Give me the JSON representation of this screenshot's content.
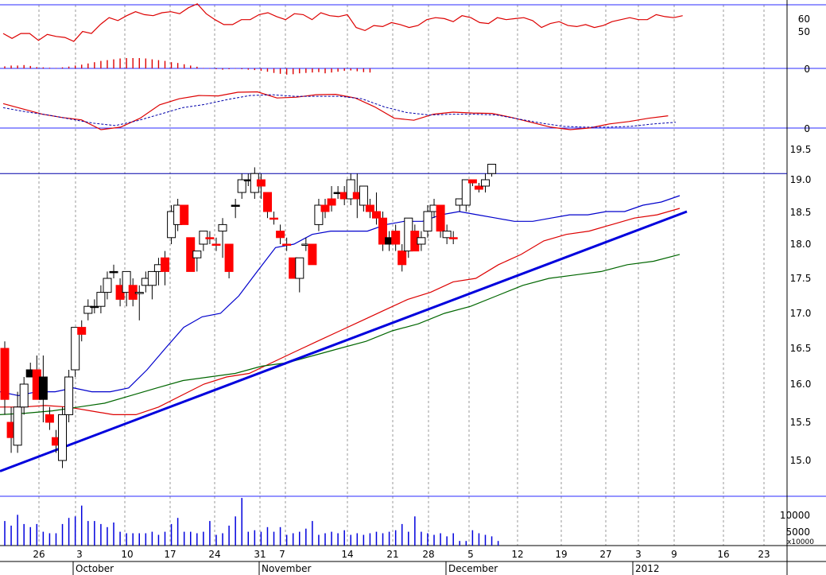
{
  "colors": {
    "up_candle": "#ffffff",
    "down_candle": "#ff0000",
    "neutral_candle": "#000000",
    "ma_fast": "#0000cc",
    "ma_mid": "#dd0000",
    "ma_slow": "#006600",
    "trendline": "#0000dd",
    "resistance": "#0000aa",
    "grid": "#999999",
    "rsi_line": "#dd0000",
    "macd_line": "#dd0000",
    "macd_signal": "#0000aa",
    "histogram": "#dd0000",
    "volume": "#0000dd"
  },
  "chart_data": [
    {
      "type": "line",
      "panel": "rsi",
      "yticks": [
        "60",
        "50"
      ],
      "ylim": [
        30,
        75
      ],
      "series": [
        {
          "values": [
            46,
            41,
            46,
            46,
            39,
            45,
            43,
            42,
            38,
            48,
            46,
            55,
            62,
            59,
            64,
            68,
            65,
            64,
            67,
            68,
            66,
            72,
            76,
            66,
            60,
            55,
            55,
            60,
            60,
            65,
            67,
            63,
            60,
            66,
            65,
            60,
            67,
            64,
            63,
            65,
            52,
            49,
            54,
            53,
            57,
            55,
            52,
            54,
            60,
            62,
            61,
            58,
            64,
            62,
            57,
            56,
            62,
            60,
            61,
            62,
            59,
            52,
            56,
            58,
            54,
            53,
            55,
            52,
            54,
            58,
            60,
            62,
            60,
            60,
            65,
            63,
            62,
            64
          ]
        }
      ]
    },
    {
      "type": "bar",
      "panel": "macd_histogram",
      "yticks": [
        "0"
      ],
      "ylim": [
        -1,
        1
      ],
      "values": [
        0.1,
        0.14,
        0.14,
        0.16,
        0.12,
        0.06,
        0.05,
        0.03,
        0.02,
        0.05,
        0.09,
        0.14,
        0.18,
        0.24,
        0.3,
        0.36,
        0.4,
        0.44,
        0.48,
        0.5,
        0.5,
        0.5,
        0.48,
        0.44,
        0.4,
        0.36,
        0.3,
        0.26,
        0.2,
        0.14,
        0.08,
        0.02,
        -0.02,
        -0.04,
        -0.06,
        -0.04,
        -0.02,
        -0.04,
        -0.06,
        -0.08,
        -0.12,
        -0.16,
        -0.22,
        -0.26,
        -0.3,
        -0.28,
        -0.24,
        -0.22,
        -0.2,
        -0.18,
        -0.24,
        -0.2,
        -0.16,
        -0.12,
        -0.1,
        -0.14,
        -0.18,
        -0.2
      ]
    },
    {
      "type": "line",
      "panel": "macd",
      "yticks": [
        "0"
      ],
      "ylim": [
        -1,
        1
      ],
      "series": [
        {
          "values": [
            0.68,
            0.55,
            0.42,
            0.34,
            0.28,
            0.04,
            0.1,
            0.32,
            0.65,
            0.8,
            0.88,
            0.87,
            0.96,
            0.97,
            0.82,
            0.84,
            0.9,
            0.91,
            0.82,
            0.6,
            0.32,
            0.27,
            0.42,
            0.47,
            0.45,
            0.44,
            0.34,
            0.22,
            0.1,
            0.04,
            0.08,
            0.18,
            0.24,
            0.32,
            0.38
          ]
        },
        {
          "values": [
            0.58,
            0.48,
            0.4,
            0.3,
            0.2,
            0.14,
            0.26,
            0.42,
            0.58,
            0.66,
            0.78,
            0.88,
            0.9,
            0.86,
            0.86,
            0.86,
            0.8,
            0.6,
            0.46,
            0.4,
            0.42,
            0.42,
            0.4,
            0.3,
            0.2,
            0.12,
            0.1,
            0.1,
            0.12,
            0.18,
            0.22
          ]
        }
      ]
    },
    {
      "type": "candlestick",
      "panel": "price",
      "yticks": [
        "19.5",
        "19.0",
        "18.5",
        "18.0",
        "17.5",
        "17.0",
        "16.5",
        "16.0",
        "15.5",
        "15.0"
      ],
      "ylim": [
        14.5,
        19.8
      ],
      "resistance": 19.1,
      "trendline": {
        "from": 14.86,
        "to": 18.5
      },
      "candles": [
        {
          "o": 16.5,
          "h": 16.6,
          "l": 15.6,
          "c": 15.8,
          "d": -1
        },
        {
          "o": 15.5,
          "h": 15.7,
          "l": 15.1,
          "c": 15.3,
          "d": -1
        },
        {
          "o": 15.2,
          "h": 15.9,
          "l": 15.1,
          "c": 15.7,
          "d": 1
        },
        {
          "o": 15.7,
          "h": 16.1,
          "l": 15.6,
          "c": 16.0,
          "d": 1
        },
        {
          "o": 16.2,
          "h": 16.3,
          "l": 16.1,
          "c": 16.1,
          "d": 0
        },
        {
          "o": 16.2,
          "h": 16.4,
          "l": 15.8,
          "c": 15.8,
          "d": -1
        },
        {
          "o": 16.1,
          "h": 16.4,
          "l": 15.5,
          "c": 15.8,
          "d": 0
        },
        {
          "o": 15.6,
          "h": 15.7,
          "l": 15.4,
          "c": 15.5,
          "d": -1
        },
        {
          "o": 15.3,
          "h": 15.4,
          "l": 15.1,
          "c": 15.2,
          "d": -1
        },
        {
          "o": 15.0,
          "h": 15.7,
          "l": 14.9,
          "c": 15.6,
          "d": 1
        },
        {
          "o": 15.6,
          "h": 16.2,
          "l": 15.5,
          "c": 16.1,
          "d": 1
        },
        {
          "o": 16.2,
          "h": 16.8,
          "l": 16.1,
          "c": 16.8,
          "d": 1
        },
        {
          "o": 16.8,
          "h": 16.9,
          "l": 16.6,
          "c": 16.7,
          "d": -1
        },
        {
          "o": 17.0,
          "h": 17.2,
          "l": 16.9,
          "c": 17.1,
          "d": 1
        },
        {
          "o": 17.1,
          "h": 17.2,
          "l": 17.0,
          "c": 17.1,
          "d": 0
        },
        {
          "o": 17.1,
          "h": 17.4,
          "l": 17.0,
          "c": 17.3,
          "d": 1
        },
        {
          "o": 17.3,
          "h": 17.6,
          "l": 17.2,
          "c": 17.5,
          "d": 1
        },
        {
          "o": 17.6,
          "h": 17.7,
          "l": 17.5,
          "c": 17.6,
          "d": 0
        },
        {
          "o": 17.4,
          "h": 17.5,
          "l": 17.1,
          "c": 17.2,
          "d": -1
        },
        {
          "o": 17.3,
          "h": 17.6,
          "l": 17.1,
          "c": 17.6,
          "d": 1
        },
        {
          "o": 17.4,
          "h": 17.5,
          "l": 17.1,
          "c": 17.2,
          "d": -1
        },
        {
          "o": 17.3,
          "h": 17.4,
          "l": 16.9,
          "c": 17.3,
          "d": 1
        },
        {
          "o": 17.4,
          "h": 17.6,
          "l": 17.3,
          "c": 17.5,
          "d": 1
        },
        {
          "o": 17.4,
          "h": 17.6,
          "l": 17.2,
          "c": 17.6,
          "d": 1
        },
        {
          "o": 17.6,
          "h": 17.8,
          "l": 17.4,
          "c": 17.7,
          "d": 1
        },
        {
          "o": 17.8,
          "h": 17.9,
          "l": 17.4,
          "c": 17.6,
          "d": -1
        },
        {
          "o": 18.1,
          "h": 18.6,
          "l": 18.0,
          "c": 18.5,
          "d": 1
        },
        {
          "o": 18.3,
          "h": 18.7,
          "l": 18.2,
          "c": 18.6,
          "d": 1
        },
        {
          "o": 18.6,
          "h": 18.6,
          "l": 18.3,
          "c": 18.3,
          "d": -1
        },
        {
          "o": 18.1,
          "h": 18.1,
          "l": 17.6,
          "c": 17.6,
          "d": -1
        },
        {
          "o": 17.8,
          "h": 17.9,
          "l": 17.6,
          "c": 17.9,
          "d": 1
        },
        {
          "o": 18.0,
          "h": 18.2,
          "l": 17.9,
          "c": 18.2,
          "d": 1
        },
        {
          "o": 18.1,
          "h": 18.2,
          "l": 18.0,
          "c": 18.1,
          "d": -1
        },
        {
          "o": 18.0,
          "h": 18.1,
          "l": 17.9,
          "c": 18.0,
          "d": -1
        },
        {
          "o": 18.2,
          "h": 18.4,
          "l": 17.8,
          "c": 18.3,
          "d": 1
        },
        {
          "o": 18.0,
          "h": 18.0,
          "l": 17.5,
          "c": 17.6,
          "d": -1
        },
        {
          "o": 18.6,
          "h": 18.7,
          "l": 18.4,
          "c": 18.6,
          "d": 0
        },
        {
          "o": 18.8,
          "h": 19.1,
          "l": 18.7,
          "c": 19.0,
          "d": 1
        },
        {
          "o": 19.0,
          "h": 19.1,
          "l": 18.9,
          "c": 19.0,
          "d": 0
        },
        {
          "o": 18.8,
          "h": 19.2,
          "l": 18.7,
          "c": 19.1,
          "d": 1
        },
        {
          "o": 19.0,
          "h": 19.1,
          "l": 18.7,
          "c": 18.9,
          "d": -1
        },
        {
          "o": 18.8,
          "h": 18.8,
          "l": 18.4,
          "c": 18.5,
          "d": -1
        },
        {
          "o": 18.4,
          "h": 18.5,
          "l": 18.3,
          "c": 18.4,
          "d": -1
        },
        {
          "o": 18.2,
          "h": 18.3,
          "l": 18.0,
          "c": 18.1,
          "d": -1
        },
        {
          "o": 18.0,
          "h": 18.1,
          "l": 17.9,
          "c": 18.0,
          "d": -1
        },
        {
          "o": 17.8,
          "h": 17.8,
          "l": 17.5,
          "c": 17.5,
          "d": -1
        },
        {
          "o": 17.5,
          "h": 17.8,
          "l": 17.3,
          "c": 17.8,
          "d": 1
        },
        {
          "o": 18.0,
          "h": 18.1,
          "l": 17.9,
          "c": 18.0,
          "d": 1
        },
        {
          "o": 18.0,
          "h": 18.0,
          "l": 17.7,
          "c": 17.7,
          "d": -1
        },
        {
          "o": 18.3,
          "h": 18.7,
          "l": 18.2,
          "c": 18.6,
          "d": 1
        },
        {
          "o": 18.6,
          "h": 18.7,
          "l": 18.4,
          "c": 18.5,
          "d": -1
        },
        {
          "o": 18.6,
          "h": 18.9,
          "l": 18.5,
          "c": 18.7,
          "d": -1
        },
        {
          "o": 18.8,
          "h": 18.9,
          "l": 18.7,
          "c": 18.8,
          "d": 0
        },
        {
          "o": 18.8,
          "h": 18.9,
          "l": 18.6,
          "c": 18.7,
          "d": -1
        },
        {
          "o": 18.7,
          "h": 19.1,
          "l": 18.6,
          "c": 19.0,
          "d": 1
        },
        {
          "o": 18.8,
          "h": 19.1,
          "l": 18.4,
          "c": 18.7,
          "d": -1
        },
        {
          "o": 18.6,
          "h": 18.9,
          "l": 18.5,
          "c": 18.9,
          "d": 1
        },
        {
          "o": 18.6,
          "h": 18.7,
          "l": 18.4,
          "c": 18.5,
          "d": -1
        },
        {
          "o": 18.5,
          "h": 18.8,
          "l": 18.3,
          "c": 18.4,
          "d": -1
        },
        {
          "o": 18.4,
          "h": 18.5,
          "l": 17.9,
          "c": 18.0,
          "d": -1
        },
        {
          "o": 18.1,
          "h": 18.2,
          "l": 17.9,
          "c": 18.0,
          "d": 0
        },
        {
          "o": 18.2,
          "h": 18.3,
          "l": 17.9,
          "c": 18.0,
          "d": -1
        },
        {
          "o": 17.9,
          "h": 18.0,
          "l": 17.6,
          "c": 17.7,
          "d": -1
        },
        {
          "o": 17.9,
          "h": 18.4,
          "l": 17.8,
          "c": 18.4,
          "d": 1
        },
        {
          "o": 18.2,
          "h": 18.3,
          "l": 17.9,
          "c": 17.9,
          "d": -1
        },
        {
          "o": 18.0,
          "h": 18.2,
          "l": 17.9,
          "c": 18.1,
          "d": 1
        },
        {
          "o": 18.2,
          "h": 18.6,
          "l": 18.1,
          "c": 18.5,
          "d": 1
        },
        {
          "o": 18.5,
          "h": 18.7,
          "l": 18.4,
          "c": 18.6,
          "d": 1
        },
        {
          "o": 18.6,
          "h": 18.6,
          "l": 18.1,
          "c": 18.2,
          "d": -1
        },
        {
          "o": 18.1,
          "h": 18.3,
          "l": 18.0,
          "c": 18.2,
          "d": 1
        },
        {
          "o": 18.1,
          "h": 18.2,
          "l": 18.0,
          "c": 18.1,
          "d": -1
        },
        {
          "o": 18.6,
          "h": 18.7,
          "l": 18.5,
          "c": 18.7,
          "d": 1
        },
        {
          "o": 18.6,
          "h": 19.0,
          "l": 18.5,
          "c": 19.0,
          "d": 1
        },
        {
          "o": 19.0,
          "h": 19.0,
          "l": 18.9,
          "c": 18.95,
          "d": -1
        },
        {
          "o": 18.9,
          "h": 18.95,
          "l": 18.8,
          "c": 18.85,
          "d": -1
        },
        {
          "o": 18.9,
          "h": 19.1,
          "l": 18.8,
          "c": 19.0,
          "d": 1
        },
        {
          "o": 19.1,
          "h": 19.25,
          "l": 19.05,
          "c": 19.25,
          "d": 1
        }
      ],
      "ma": [
        {
          "color_key": "ma_fast",
          "values": [
            15.9,
            15.85,
            15.9,
            15.9,
            15.95,
            15.9,
            15.9,
            15.95,
            16.2,
            16.5,
            16.8,
            16.95,
            17.0,
            17.25,
            17.6,
            17.95,
            18.0,
            18.15,
            18.2,
            18.2,
            18.2,
            18.3,
            18.35,
            18.35,
            18.45,
            18.5,
            18.45,
            18.4,
            18.35,
            18.35,
            18.4,
            18.45,
            18.45,
            18.5,
            18.5,
            18.6,
            18.65,
            18.75
          ]
        },
        {
          "color_key": "ma_mid",
          "values": [
            15.7,
            15.7,
            15.72,
            15.7,
            15.65,
            15.6,
            15.6,
            15.7,
            15.85,
            16.0,
            16.1,
            16.15,
            16.3,
            16.45,
            16.6,
            16.75,
            16.9,
            17.05,
            17.2,
            17.3,
            17.45,
            17.5,
            17.7,
            17.85,
            18.05,
            18.15,
            18.2,
            18.3,
            18.4,
            18.45,
            18.55
          ]
        },
        {
          "color_key": "ma_slow",
          "values": [
            15.6,
            15.62,
            15.65,
            15.7,
            15.75,
            15.85,
            15.95,
            16.05,
            16.1,
            16.15,
            16.25,
            16.3,
            16.4,
            16.5,
            16.6,
            16.75,
            16.85,
            17.0,
            17.1,
            17.25,
            17.4,
            17.5,
            17.55,
            17.6,
            17.7,
            17.75,
            17.85
          ]
        }
      ]
    },
    {
      "type": "bar",
      "panel": "volume",
      "yticks": [
        "10000",
        "5000"
      ],
      "unit": "x10000",
      "ylim": [
        0,
        15000
      ],
      "values": [
        8000,
        6500,
        10000,
        7000,
        6000,
        7000,
        4500,
        4000,
        4000,
        7000,
        9000,
        9500,
        13000,
        8000,
        8000,
        7000,
        6000,
        7500,
        4500,
        4000,
        4000,
        4000,
        4000,
        4500,
        3500,
        4500,
        7000,
        9000,
        4500,
        4500,
        4000,
        4500,
        8000,
        3500,
        4000,
        6500,
        9500,
        15500,
        4500,
        5000,
        4500,
        6000,
        4500,
        6000,
        3500,
        4000,
        4500,
        5500,
        8000,
        3500,
        4000,
        4500,
        4000,
        5000,
        3500,
        4000,
        3500,
        4000,
        4500,
        4000,
        4500,
        5000,
        7000,
        4500,
        9500,
        4500,
        4000,
        3500,
        4000,
        3000,
        4000,
        1500,
        1500,
        5000,
        4000,
        3500,
        3000,
        1500
      ]
    }
  ],
  "x_axis": {
    "day_labels": [
      "26",
      "3",
      "10",
      "17",
      "24",
      "31",
      "7",
      "14",
      "21",
      "28",
      "5",
      "12",
      "19",
      "27",
      "3",
      "9",
      "16",
      "23"
    ],
    "month_labels": [
      "October",
      "November",
      "December",
      "2012"
    ]
  }
}
